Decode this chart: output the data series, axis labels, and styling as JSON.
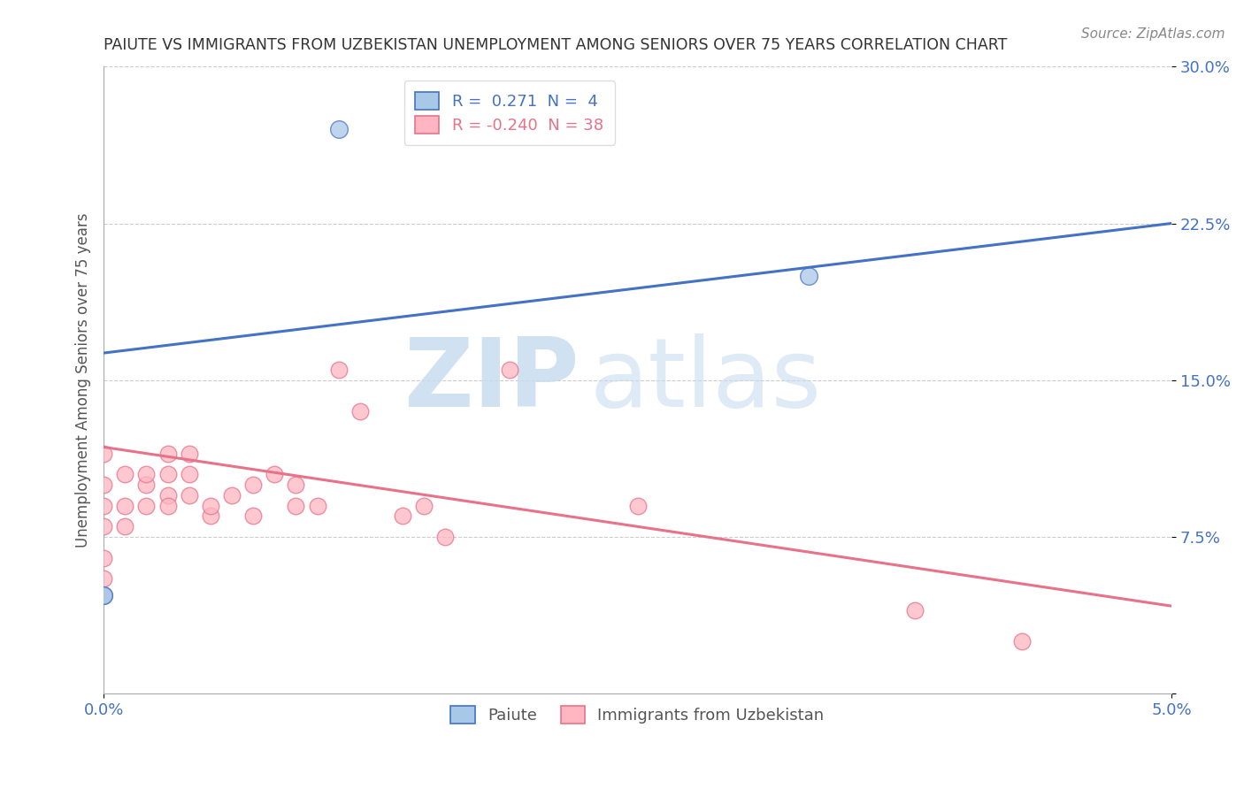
{
  "title": "PAIUTE VS IMMIGRANTS FROM UZBEKISTAN UNEMPLOYMENT AMONG SENIORS OVER 75 YEARS CORRELATION CHART",
  "source": "Source: ZipAtlas.com",
  "ylabel": "Unemployment Among Seniors over 75 years",
  "watermark_zip": "ZIP",
  "watermark_atlas": "atlas",
  "xlim": [
    0.0,
    0.05
  ],
  "ylim": [
    0.0,
    0.3
  ],
  "yticks": [
    0.0,
    0.075,
    0.15,
    0.225,
    0.3
  ],
  "ytick_labels": [
    "",
    "7.5%",
    "15.0%",
    "22.5%",
    "30.0%"
  ],
  "xticks": [
    0.0,
    0.05
  ],
  "xtick_labels": [
    "0.0%",
    "5.0%"
  ],
  "blue_R": 0.271,
  "blue_N": 4,
  "pink_R": -0.24,
  "pink_N": 38,
  "blue_scatter_color": "#A8C8E8",
  "blue_edge_color": "#4472C4",
  "pink_scatter_color": "#FFB6C1",
  "pink_edge_color": "#E8728A",
  "blue_line_color": "#4472C4",
  "pink_line_color": "#E8728A",
  "legend_label_blue": "Paiute",
  "legend_label_pink": "Immigrants from Uzbekistan",
  "blue_scatter_x": [
    0.0,
    0.0,
    0.011,
    0.033
  ],
  "blue_scatter_y": [
    0.047,
    0.047,
    0.27,
    0.2
  ],
  "pink_scatter_x": [
    0.0,
    0.0,
    0.0,
    0.0,
    0.0,
    0.0,
    0.0,
    0.001,
    0.001,
    0.001,
    0.002,
    0.002,
    0.002,
    0.003,
    0.003,
    0.003,
    0.003,
    0.004,
    0.004,
    0.004,
    0.005,
    0.005,
    0.006,
    0.007,
    0.007,
    0.008,
    0.009,
    0.009,
    0.01,
    0.011,
    0.012,
    0.014,
    0.015,
    0.016,
    0.019,
    0.025,
    0.038,
    0.043
  ],
  "pink_scatter_y": [
    0.047,
    0.055,
    0.065,
    0.08,
    0.09,
    0.1,
    0.115,
    0.08,
    0.09,
    0.105,
    0.1,
    0.105,
    0.09,
    0.095,
    0.105,
    0.115,
    0.09,
    0.095,
    0.105,
    0.115,
    0.085,
    0.09,
    0.095,
    0.085,
    0.1,
    0.105,
    0.09,
    0.1,
    0.09,
    0.155,
    0.135,
    0.085,
    0.09,
    0.075,
    0.155,
    0.09,
    0.04,
    0.025
  ],
  "blue_trend_x": [
    0.0,
    0.05
  ],
  "blue_trend_y": [
    0.163,
    0.225
  ],
  "pink_trend_x": [
    0.0,
    0.05
  ],
  "pink_trend_y": [
    0.118,
    0.042
  ],
  "grid_color": "#CCCCCC",
  "grid_style": "--",
  "background_color": "#FFFFFF",
  "title_color": "#333333",
  "axis_label_color": "#555555",
  "tick_label_color": "#4472C4",
  "source_color": "#888888"
}
